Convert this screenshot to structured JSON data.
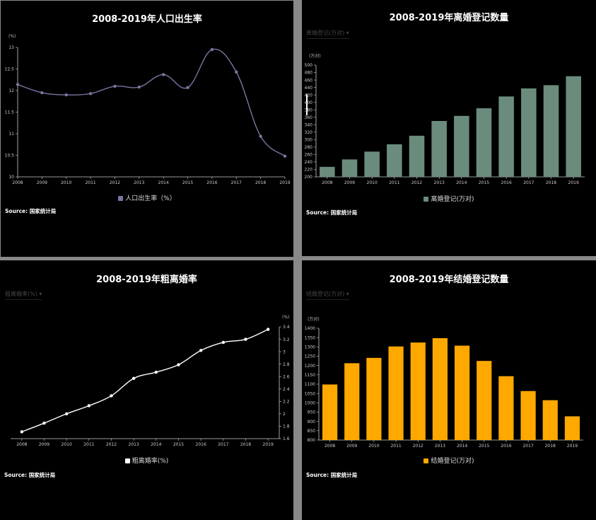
{
  "chart_data": [
    {
      "id": "birth",
      "type": "line",
      "title": "2008-2019年人口出生率",
      "unit": "(%)",
      "categories": [
        "2008",
        "2009",
        "2010",
        "2011",
        "2012",
        "2013",
        "2014",
        "2015",
        "2016",
        "2017",
        "2018",
        "2019"
      ],
      "series": [
        {
          "name": "人口出生率（%）",
          "values": [
            12.14,
            11.95,
            11.9,
            11.93,
            12.1,
            12.08,
            12.37,
            12.07,
            12.95,
            12.43,
            10.94,
            10.48
          ]
        }
      ],
      "ylim": [
        10,
        13
      ],
      "yticks": [
        10,
        10.5,
        11,
        11.5,
        12,
        12.5,
        13
      ],
      "y_axis_side": "left",
      "smooth": true,
      "legend": "bottom",
      "color": "#7d74a0",
      "source": "Source: 国家统计局"
    },
    {
      "id": "divorce",
      "type": "bar",
      "title": "2008-2019年离婚登记数量",
      "dropdown": "离婚登记(万对)",
      "unit": "(万对)",
      "categories": [
        "2008",
        "2009",
        "2010",
        "2011",
        "2012",
        "2013",
        "2014",
        "2015",
        "2016",
        "2017",
        "2018",
        "2019"
      ],
      "series": [
        {
          "name": "离婚登记(万对)",
          "values": [
            226.9,
            246.8,
            267.8,
            287.4,
            310.4,
            350.0,
            363.7,
            384.1,
            415.8,
            437.4,
            446.1,
            470.1
          ]
        }
      ],
      "ylim": [
        200,
        500
      ],
      "yticks": [
        200,
        220,
        240,
        260,
        280,
        300,
        320,
        340,
        360,
        380,
        400,
        420,
        440,
        460,
        480,
        500
      ],
      "y_axis_side": "left",
      "legend": "bottom",
      "color": "#6b8c7c",
      "source": "Source: 国家统计局"
    },
    {
      "id": "crude",
      "type": "line",
      "title": "2008-2019年粗离婚率",
      "dropdown": "粗离婚率(%)",
      "unit": "(%)",
      "categories": [
        "2008",
        "2009",
        "2010",
        "2011",
        "2012",
        "2013",
        "2014",
        "2015",
        "2016",
        "2017",
        "2018",
        "2019"
      ],
      "series": [
        {
          "name": "粗离婚率(%)",
          "values": [
            1.71,
            1.85,
            2.0,
            2.13,
            2.29,
            2.57,
            2.67,
            2.79,
            3.02,
            3.15,
            3.2,
            3.36
          ]
        }
      ],
      "ylim": [
        1.6,
        3.4
      ],
      "yticks": [
        1.6,
        1.8,
        2,
        2.2,
        2.4,
        2.6,
        2.8,
        3,
        3.2,
        3.4
      ],
      "y_axis_side": "right",
      "smooth": true,
      "legend": "bottom",
      "color": "#ffffff",
      "source": "Source: 国家统计局"
    },
    {
      "id": "marriage",
      "type": "bar",
      "title": "2008-2019年结婚登记数量",
      "dropdown": "结婚登记(万对)",
      "unit": "(万对)",
      "categories": [
        "2008",
        "2009",
        "2010",
        "2011",
        "2012",
        "2013",
        "2014",
        "2015",
        "2016",
        "2017",
        "2018",
        "2019"
      ],
      "series": [
        {
          "name": "结婚登记(万对)",
          "values": [
            1098.3,
            1212.4,
            1241.0,
            1302.4,
            1323.6,
            1346.9,
            1306.7,
            1224.7,
            1142.8,
            1063.1,
            1013.9,
            927.3
          ]
        }
      ],
      "ylim": [
        800,
        1400
      ],
      "yticks": [
        800,
        850,
        900,
        950,
        1000,
        1050,
        1100,
        1150,
        1200,
        1250,
        1300,
        1350,
        1400
      ],
      "y_axis_side": "left",
      "legend": "bottom",
      "color": "#ffa800",
      "source": "Source: 国家统计局"
    }
  ]
}
